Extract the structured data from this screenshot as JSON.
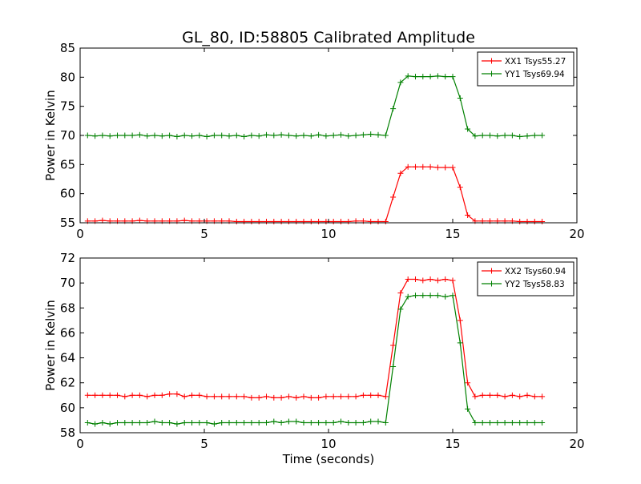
{
  "figure": {
    "title": "GL_80, ID:58805 Calibrated Amplitude",
    "xlabel": "Time (seconds)"
  },
  "chart_data": [
    {
      "type": "line",
      "title": "GL_80, ID:58805 Calibrated Amplitude",
      "xlabel": "",
      "ylabel": "Power in Kelvin",
      "xlim": [
        0,
        20
      ],
      "ylim": [
        55,
        85
      ],
      "xticks": [
        0,
        5,
        10,
        15,
        20
      ],
      "yticks": [
        55,
        60,
        65,
        70,
        75,
        80,
        85
      ],
      "grid": false,
      "legend_position": "top-right",
      "x": [
        0.3,
        0.6,
        0.9,
        1.2,
        1.5,
        1.8,
        2.1,
        2.4,
        2.7,
        3.0,
        3.3,
        3.6,
        3.9,
        4.2,
        4.5,
        4.8,
        5.1,
        5.4,
        5.7,
        6.0,
        6.3,
        6.6,
        6.9,
        7.2,
        7.5,
        7.8,
        8.1,
        8.4,
        8.7,
        9.0,
        9.3,
        9.6,
        9.9,
        10.2,
        10.5,
        10.8,
        11.1,
        11.4,
        11.7,
        12.0,
        12.3,
        12.6,
        12.9,
        13.2,
        13.5,
        13.8,
        14.1,
        14.4,
        14.7,
        15.0,
        15.3,
        15.6,
        15.9,
        16.2,
        16.5,
        16.8,
        17.1,
        17.4,
        17.7,
        18.0,
        18.3,
        18.6
      ],
      "series": [
        {
          "name": "XX1 Tsys55.27",
          "color": "#ff0000",
          "values": [
            55.3,
            55.3,
            55.4,
            55.3,
            55.3,
            55.3,
            55.3,
            55.4,
            55.3,
            55.3,
            55.3,
            55.3,
            55.3,
            55.4,
            55.3,
            55.3,
            55.3,
            55.3,
            55.3,
            55.3,
            55.2,
            55.2,
            55.2,
            55.2,
            55.2,
            55.2,
            55.2,
            55.2,
            55.2,
            55.2,
            55.2,
            55.2,
            55.2,
            55.2,
            55.2,
            55.2,
            55.3,
            55.3,
            55.2,
            55.2,
            55.2,
            59.4,
            63.5,
            64.6,
            64.6,
            64.6,
            64.6,
            64.5,
            64.5,
            64.5,
            61.1,
            56.3,
            55.3,
            55.3,
            55.3,
            55.3,
            55.3,
            55.3,
            55.2,
            55.2,
            55.2,
            55.2
          ]
        },
        {
          "name": "YY1 Tsys69.94",
          "color": "#008000",
          "values": [
            70.0,
            69.9,
            70.0,
            69.9,
            70.0,
            70.0,
            70.0,
            70.1,
            69.9,
            70.0,
            69.9,
            70.0,
            69.8,
            70.0,
            69.9,
            70.0,
            69.8,
            70.0,
            70.0,
            69.9,
            70.0,
            69.8,
            70.0,
            69.9,
            70.1,
            70.0,
            70.1,
            70.0,
            69.9,
            70.0,
            69.9,
            70.1,
            69.9,
            70.0,
            70.1,
            69.9,
            70.0,
            70.1,
            70.2,
            70.1,
            70.0,
            74.6,
            79.1,
            80.2,
            80.1,
            80.1,
            80.1,
            80.2,
            80.1,
            80.1,
            76.4,
            71.1,
            69.9,
            70.0,
            70.0,
            69.9,
            70.0,
            70.0,
            69.8,
            69.9,
            70.0,
            70.0
          ]
        }
      ]
    },
    {
      "type": "line",
      "title": "",
      "xlabel": "Time (seconds)",
      "ylabel": "Power in Kelvin",
      "xlim": [
        0,
        20
      ],
      "ylim": [
        58,
        72
      ],
      "xticks": [
        0,
        5,
        10,
        15,
        20
      ],
      "yticks": [
        58,
        60,
        62,
        64,
        66,
        68,
        70,
        72
      ],
      "grid": false,
      "legend_position": "top-right",
      "x": [
        0.3,
        0.6,
        0.9,
        1.2,
        1.5,
        1.8,
        2.1,
        2.4,
        2.7,
        3.0,
        3.3,
        3.6,
        3.9,
        4.2,
        4.5,
        4.8,
        5.1,
        5.4,
        5.7,
        6.0,
        6.3,
        6.6,
        6.9,
        7.2,
        7.5,
        7.8,
        8.1,
        8.4,
        8.7,
        9.0,
        9.3,
        9.6,
        9.9,
        10.2,
        10.5,
        10.8,
        11.1,
        11.4,
        11.7,
        12.0,
        12.3,
        12.6,
        12.9,
        13.2,
        13.5,
        13.8,
        14.1,
        14.4,
        14.7,
        15.0,
        15.3,
        15.6,
        15.9,
        16.2,
        16.5,
        16.8,
        17.1,
        17.4,
        17.7,
        18.0,
        18.3,
        18.6
      ],
      "series": [
        {
          "name": "XX2 Tsys60.94",
          "color": "#ff0000",
          "values": [
            61.0,
            61.0,
            61.0,
            61.0,
            61.0,
            60.9,
            61.0,
            61.0,
            60.9,
            61.0,
            61.0,
            61.1,
            61.1,
            60.9,
            61.0,
            61.0,
            60.9,
            60.9,
            60.9,
            60.9,
            60.9,
            60.9,
            60.8,
            60.8,
            60.9,
            60.8,
            60.8,
            60.9,
            60.8,
            60.9,
            60.8,
            60.8,
            60.9,
            60.9,
            60.9,
            60.9,
            60.9,
            61.0,
            61.0,
            61.0,
            60.9,
            65.0,
            69.2,
            70.3,
            70.3,
            70.2,
            70.3,
            70.2,
            70.3,
            70.2,
            67.0,
            62.0,
            60.9,
            61.0,
            61.0,
            61.0,
            60.9,
            61.0,
            60.9,
            61.0,
            60.9,
            60.9
          ]
        },
        {
          "name": "YY2 Tsys58.83",
          "color": "#008000",
          "values": [
            58.8,
            58.7,
            58.8,
            58.7,
            58.8,
            58.8,
            58.8,
            58.8,
            58.8,
            58.9,
            58.8,
            58.8,
            58.7,
            58.8,
            58.8,
            58.8,
            58.8,
            58.7,
            58.8,
            58.8,
            58.8,
            58.8,
            58.8,
            58.8,
            58.8,
            58.9,
            58.8,
            58.9,
            58.9,
            58.8,
            58.8,
            58.8,
            58.8,
            58.8,
            58.9,
            58.8,
            58.8,
            58.8,
            58.9,
            58.9,
            58.8,
            63.3,
            67.9,
            68.9,
            69.0,
            69.0,
            69.0,
            69.0,
            68.9,
            69.0,
            65.2,
            59.9,
            58.8,
            58.8,
            58.8,
            58.8,
            58.8,
            58.8,
            58.8,
            58.8,
            58.8,
            58.8
          ]
        }
      ]
    }
  ]
}
